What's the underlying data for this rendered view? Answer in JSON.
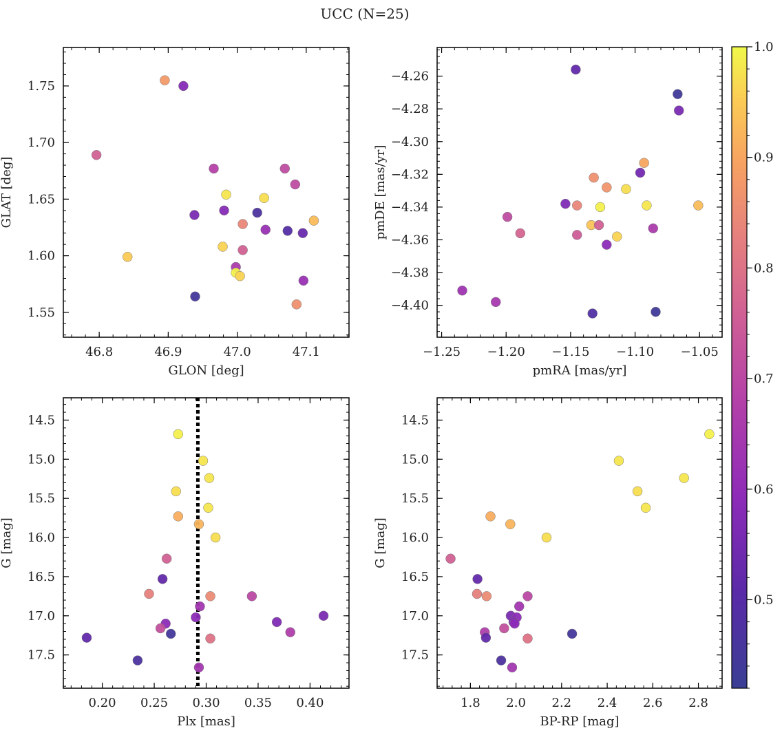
{
  "figure": {
    "title": "UCC (N=25)"
  },
  "colorbar": {
    "min": 0.42,
    "max": 1.0,
    "ticks": [
      0.5,
      0.6,
      0.7,
      0.8,
      0.9,
      1.0
    ],
    "tick_labels": [
      "0.5",
      "0.6",
      "0.7",
      "0.8",
      "0.9",
      "1.0"
    ],
    "colormap": "plasma"
  },
  "chart_data": [
    {
      "type": "scatter",
      "xlabel": "GLON [deg]",
      "ylabel": "GLAT [deg]",
      "xlim": [
        46.748,
        47.162
      ],
      "ylim": [
        1.528,
        1.784
      ],
      "y_inverted": false,
      "xticks": [
        46.8,
        46.9,
        47.0,
        47.1
      ],
      "xtick_labels": [
        "46.8",
        "46.9",
        "47.0",
        "47.1"
      ],
      "yticks": [
        1.55,
        1.6,
        1.65,
        1.7,
        1.75
      ],
      "ytick_labels": [
        "1.55",
        "1.60",
        "1.65",
        "1.70",
        "1.75"
      ],
      "points": [
        {
          "x": 46.895,
          "y": 1.755,
          "c": 0.88
        },
        {
          "x": 46.922,
          "y": 1.75,
          "c": 0.58
        },
        {
          "x": 46.796,
          "y": 1.689,
          "c": 0.76
        },
        {
          "x": 46.966,
          "y": 1.677,
          "c": 0.68
        },
        {
          "x": 47.069,
          "y": 1.677,
          "c": 0.71
        },
        {
          "x": 47.084,
          "y": 1.663,
          "c": 0.71
        },
        {
          "x": 46.984,
          "y": 1.654,
          "c": 0.98
        },
        {
          "x": 47.039,
          "y": 1.651,
          "c": 0.97
        },
        {
          "x": 46.981,
          "y": 1.64,
          "c": 0.58
        },
        {
          "x": 47.029,
          "y": 1.638,
          "c": 0.47
        },
        {
          "x": 46.938,
          "y": 1.636,
          "c": 0.56
        },
        {
          "x": 47.111,
          "y": 1.631,
          "c": 0.93
        },
        {
          "x": 47.008,
          "y": 1.628,
          "c": 0.84
        },
        {
          "x": 47.041,
          "y": 1.623,
          "c": 0.62
        },
        {
          "x": 47.073,
          "y": 1.622,
          "c": 0.49
        },
        {
          "x": 47.095,
          "y": 1.62,
          "c": 0.53
        },
        {
          "x": 46.979,
          "y": 1.608,
          "c": 0.96
        },
        {
          "x": 47.008,
          "y": 1.605,
          "c": 0.76
        },
        {
          "x": 46.841,
          "y": 1.599,
          "c": 0.95
        },
        {
          "x": 46.998,
          "y": 1.59,
          "c": 0.66
        },
        {
          "x": 46.998,
          "y": 1.585,
          "c": 0.99
        },
        {
          "x": 47.004,
          "y": 1.582,
          "c": 0.96
        },
        {
          "x": 47.096,
          "y": 1.578,
          "c": 0.62
        },
        {
          "x": 46.939,
          "y": 1.564,
          "c": 0.45
        },
        {
          "x": 47.086,
          "y": 1.557,
          "c": 0.86
        }
      ]
    },
    {
      "type": "scatter",
      "xlabel": "pmRA [mas/yr]",
      "ylabel": "pmDE [mas/yr]",
      "xlim": [
        -1.2535,
        -1.0325
      ],
      "ylim": [
        -4.4195,
        -4.2425
      ],
      "y_inverted": false,
      "xticks": [
        -1.25,
        -1.2,
        -1.15,
        -1.1,
        -1.05
      ],
      "xtick_labels": [
        "−1.25",
        "−1.20",
        "−1.15",
        "−1.10",
        "−1.05"
      ],
      "yticks": [
        -4.4,
        -4.38,
        -4.36,
        -4.34,
        -4.32,
        -4.3,
        -4.28,
        -4.26
      ],
      "ytick_labels": [
        "−4.40",
        "−4.38",
        "−4.36",
        "−4.34",
        "−4.32",
        "−4.30",
        "−4.28",
        "−4.26"
      ],
      "points": [
        {
          "x": -1.146,
          "y": -4.256,
          "c": 0.52
        },
        {
          "x": -1.067,
          "y": -4.271,
          "c": 0.44
        },
        {
          "x": -1.066,
          "y": -4.281,
          "c": 0.56
        },
        {
          "x": -1.093,
          "y": -4.313,
          "c": 0.9
        },
        {
          "x": -1.096,
          "y": -4.319,
          "c": 0.55
        },
        {
          "x": -1.132,
          "y": -4.322,
          "c": 0.86
        },
        {
          "x": -1.107,
          "y": -4.329,
          "c": 0.97
        },
        {
          "x": -1.122,
          "y": -4.328,
          "c": 0.87
        },
        {
          "x": -1.154,
          "y": -4.338,
          "c": 0.57
        },
        {
          "x": -1.145,
          "y": -4.339,
          "c": 0.84
        },
        {
          "x": -1.127,
          "y": -4.34,
          "c": 0.99
        },
        {
          "x": -1.091,
          "y": -4.339,
          "c": 0.98
        },
        {
          "x": -1.051,
          "y": -4.339,
          "c": 0.93
        },
        {
          "x": -1.199,
          "y": -4.346,
          "c": 0.71
        },
        {
          "x": -1.134,
          "y": -4.351,
          "c": 0.94
        },
        {
          "x": -1.128,
          "y": -4.351,
          "c": 0.76
        },
        {
          "x": -1.086,
          "y": -4.353,
          "c": 0.66
        },
        {
          "x": -1.189,
          "y": -4.356,
          "c": 0.77
        },
        {
          "x": -1.145,
          "y": -4.357,
          "c": 0.75
        },
        {
          "x": -1.114,
          "y": -4.358,
          "c": 0.96
        },
        {
          "x": -1.122,
          "y": -4.363,
          "c": 0.59
        },
        {
          "x": -1.234,
          "y": -4.391,
          "c": 0.63
        },
        {
          "x": -1.208,
          "y": -4.398,
          "c": 0.65
        },
        {
          "x": -1.133,
          "y": -4.405,
          "c": 0.48
        },
        {
          "x": -1.084,
          "y": -4.404,
          "c": 0.44
        }
      ]
    },
    {
      "type": "scatter",
      "xlabel": "Plx [mas]",
      "ylabel": "G [mag]",
      "xlim": [
        0.1625,
        0.4375
      ],
      "ylim": [
        14.215,
        17.925
      ],
      "y_inverted": true,
      "xticks": [
        0.2,
        0.25,
        0.3,
        0.35,
        0.4
      ],
      "xtick_labels": [
        "0.20",
        "0.25",
        "0.30",
        "0.35",
        "0.40"
      ],
      "yticks": [
        14.5,
        15.0,
        15.5,
        16.0,
        16.5,
        17.0,
        17.5
      ],
      "ytick_labels": [
        "14.5",
        "15.0",
        "15.5",
        "16.0",
        "16.5",
        "17.0",
        "17.5"
      ],
      "vline": {
        "x": 0.292,
        "style": "dotted"
      },
      "points": [
        {
          "x": 0.273,
          "y": 14.68,
          "c": 0.99
        },
        {
          "x": 0.297,
          "y": 15.02,
          "c": 0.98
        },
        {
          "x": 0.303,
          "y": 15.24,
          "c": 0.98
        },
        {
          "x": 0.271,
          "y": 15.41,
          "c": 0.97
        },
        {
          "x": 0.302,
          "y": 15.62,
          "c": 0.98
        },
        {
          "x": 0.273,
          "y": 15.73,
          "c": 0.91
        },
        {
          "x": 0.293,
          "y": 15.83,
          "c": 0.92
        },
        {
          "x": 0.309,
          "y": 16.0,
          "c": 0.97
        },
        {
          "x": 0.262,
          "y": 16.27,
          "c": 0.76
        },
        {
          "x": 0.258,
          "y": 16.53,
          "c": 0.52
        },
        {
          "x": 0.245,
          "y": 16.72,
          "c": 0.83
        },
        {
          "x": 0.304,
          "y": 16.75,
          "c": 0.85
        },
        {
          "x": 0.344,
          "y": 16.75,
          "c": 0.7
        },
        {
          "x": 0.294,
          "y": 16.88,
          "c": 0.64
        },
        {
          "x": 0.413,
          "y": 17.0,
          "c": 0.56
        },
        {
          "x": 0.29,
          "y": 17.02,
          "c": 0.59
        },
        {
          "x": 0.368,
          "y": 17.08,
          "c": 0.57
        },
        {
          "x": 0.261,
          "y": 17.1,
          "c": 0.59
        },
        {
          "x": 0.256,
          "y": 17.16,
          "c": 0.72
        },
        {
          "x": 0.381,
          "y": 17.21,
          "c": 0.67
        },
        {
          "x": 0.266,
          "y": 17.23,
          "c": 0.45
        },
        {
          "x": 0.185,
          "y": 17.28,
          "c": 0.52
        },
        {
          "x": 0.304,
          "y": 17.29,
          "c": 0.8
        },
        {
          "x": 0.234,
          "y": 17.57,
          "c": 0.47
        },
        {
          "x": 0.293,
          "y": 17.66,
          "c": 0.64
        }
      ]
    },
    {
      "type": "scatter",
      "xlabel": "BP-RP [mag]",
      "ylabel": "G [mag]",
      "xlim": [
        1.654,
        2.904
      ],
      "ylim": [
        14.215,
        17.925
      ],
      "y_inverted": true,
      "xticks": [
        1.8,
        2.0,
        2.2,
        2.4,
        2.6,
        2.8
      ],
      "xtick_labels": [
        "1.8",
        "2.0",
        "2.2",
        "2.4",
        "2.6",
        "2.8"
      ],
      "yticks": [
        14.5,
        15.0,
        15.5,
        16.0,
        16.5,
        17.0,
        17.5
      ],
      "ytick_labels": [
        "14.5",
        "15.0",
        "15.5",
        "16.0",
        "16.5",
        "17.0",
        "17.5"
      ],
      "points": [
        {
          "x": 2.848,
          "y": 14.68,
          "c": 0.99
        },
        {
          "x": 2.451,
          "y": 15.02,
          "c": 0.98
        },
        {
          "x": 2.737,
          "y": 15.24,
          "c": 0.98
        },
        {
          "x": 2.533,
          "y": 15.41,
          "c": 0.97
        },
        {
          "x": 2.569,
          "y": 15.62,
          "c": 0.98
        },
        {
          "x": 1.888,
          "y": 15.73,
          "c": 0.91
        },
        {
          "x": 1.975,
          "y": 15.83,
          "c": 0.92
        },
        {
          "x": 2.134,
          "y": 16.0,
          "c": 0.97
        },
        {
          "x": 1.713,
          "y": 16.27,
          "c": 0.76
        },
        {
          "x": 1.831,
          "y": 16.53,
          "c": 0.52
        },
        {
          "x": 1.829,
          "y": 16.72,
          "c": 0.83
        },
        {
          "x": 1.871,
          "y": 16.75,
          "c": 0.85
        },
        {
          "x": 2.051,
          "y": 16.75,
          "c": 0.7
        },
        {
          "x": 2.014,
          "y": 16.88,
          "c": 0.64
        },
        {
          "x": 1.977,
          "y": 17.0,
          "c": 0.56
        },
        {
          "x": 2.003,
          "y": 17.02,
          "c": 0.59
        },
        {
          "x": 1.989,
          "y": 17.08,
          "c": 0.57
        },
        {
          "x": 1.994,
          "y": 17.1,
          "c": 0.59
        },
        {
          "x": 1.948,
          "y": 17.16,
          "c": 0.72
        },
        {
          "x": 1.863,
          "y": 17.21,
          "c": 0.67
        },
        {
          "x": 2.246,
          "y": 17.23,
          "c": 0.45
        },
        {
          "x": 1.868,
          "y": 17.28,
          "c": 0.52
        },
        {
          "x": 2.051,
          "y": 17.29,
          "c": 0.8
        },
        {
          "x": 1.935,
          "y": 17.57,
          "c": 0.47
        },
        {
          "x": 1.983,
          "y": 17.66,
          "c": 0.64
        }
      ]
    }
  ]
}
